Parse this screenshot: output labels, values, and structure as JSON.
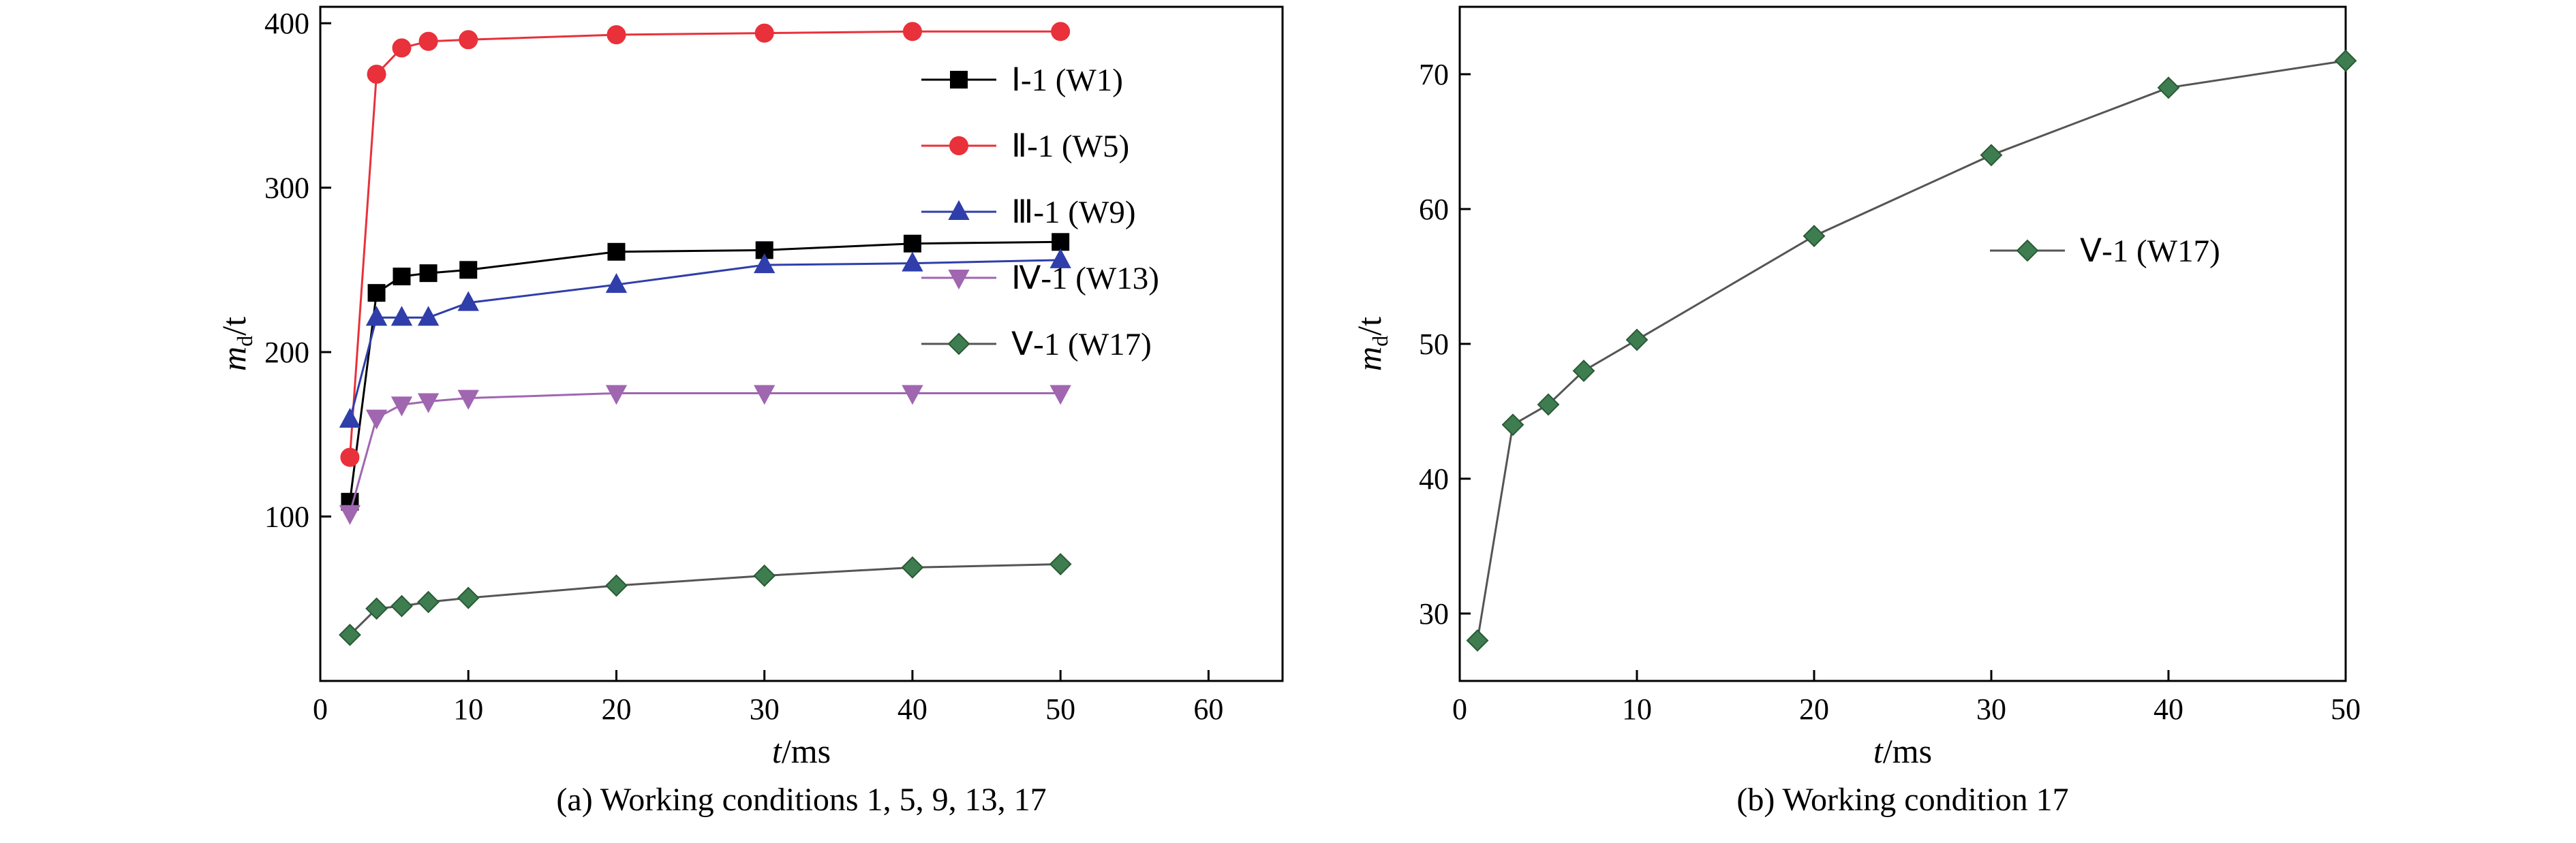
{
  "chart_data": [
    {
      "type": "line",
      "caption": "(a) Working conditions 1, 5, 9, 13, 17",
      "xlabel": {
        "var": "t",
        "unit": "/ms"
      },
      "ylabel": {
        "var": "m",
        "sub": "d",
        "unit": "/t"
      },
      "xlim": [
        0,
        65
      ],
      "ylim": [
        0,
        410
      ],
      "xticks": [
        0,
        10,
        20,
        30,
        40,
        50,
        60
      ],
      "yticks": [
        100,
        200,
        300,
        400
      ],
      "legend_position": "top-right",
      "series": [
        {
          "name": "Ⅰ-1 (W1)",
          "color": "#000000",
          "marker": "square",
          "x": [
            2,
            3.8,
            5.5,
            7.3,
            10,
            20,
            30,
            40,
            50
          ],
          "y": [
            109,
            236,
            246,
            248,
            250,
            261,
            262,
            266,
            267
          ]
        },
        {
          "name": "Ⅱ-1 (W5)",
          "color": "#e8313a",
          "marker": "circle",
          "x": [
            2,
            3.8,
            5.5,
            7.3,
            10,
            20,
            30,
            40,
            50
          ],
          "y": [
            136,
            369,
            385,
            389,
            390,
            393,
            394,
            395,
            395
          ]
        },
        {
          "name": "Ⅲ-1 (W9)",
          "color": "#2f3eaa",
          "marker": "triangle-up",
          "x": [
            2,
            3.8,
            5.5,
            7.3,
            10,
            20,
            30,
            40,
            50
          ],
          "y": [
            159,
            221,
            221,
            221,
            230,
            241,
            253,
            254,
            256
          ]
        },
        {
          "name": "Ⅳ-1 (W13)",
          "color": "#a066b0",
          "marker": "triangle-down",
          "x": [
            2,
            3.8,
            5.5,
            7.3,
            10,
            20,
            30,
            40,
            50
          ],
          "y": [
            102,
            160,
            168,
            170,
            172,
            175,
            175,
            175,
            175
          ]
        },
        {
          "name": "Ⅴ-1 (W17)",
          "color": "#3e7d4f",
          "marker": "diamond",
          "x": [
            2,
            3.8,
            5.5,
            7.3,
            10,
            20,
            30,
            40,
            50
          ],
          "y": [
            28,
            44,
            45.5,
            48,
            50.5,
            58,
            64,
            69,
            71
          ]
        }
      ]
    },
    {
      "type": "line",
      "caption": "(b) Working condition 17",
      "xlabel": {
        "var": "t",
        "unit": "/ms"
      },
      "ylabel": {
        "var": "m",
        "sub": "d",
        "unit": "/t"
      },
      "xlim": [
        0,
        50
      ],
      "ylim": [
        25,
        75
      ],
      "xticks": [
        0,
        10,
        20,
        30,
        40,
        50
      ],
      "yticks": [
        30,
        40,
        50,
        60,
        70
      ],
      "legend_position": "upper-right",
      "series": [
        {
          "name": "Ⅴ-1 (W17)",
          "color": "#3e7d4f",
          "marker": "diamond",
          "x": [
            1,
            3,
            5,
            7,
            10,
            20,
            30,
            40,
            50
          ],
          "y": [
            28,
            44,
            45.5,
            48,
            50.3,
            58,
            64,
            69,
            71
          ]
        }
      ]
    }
  ]
}
